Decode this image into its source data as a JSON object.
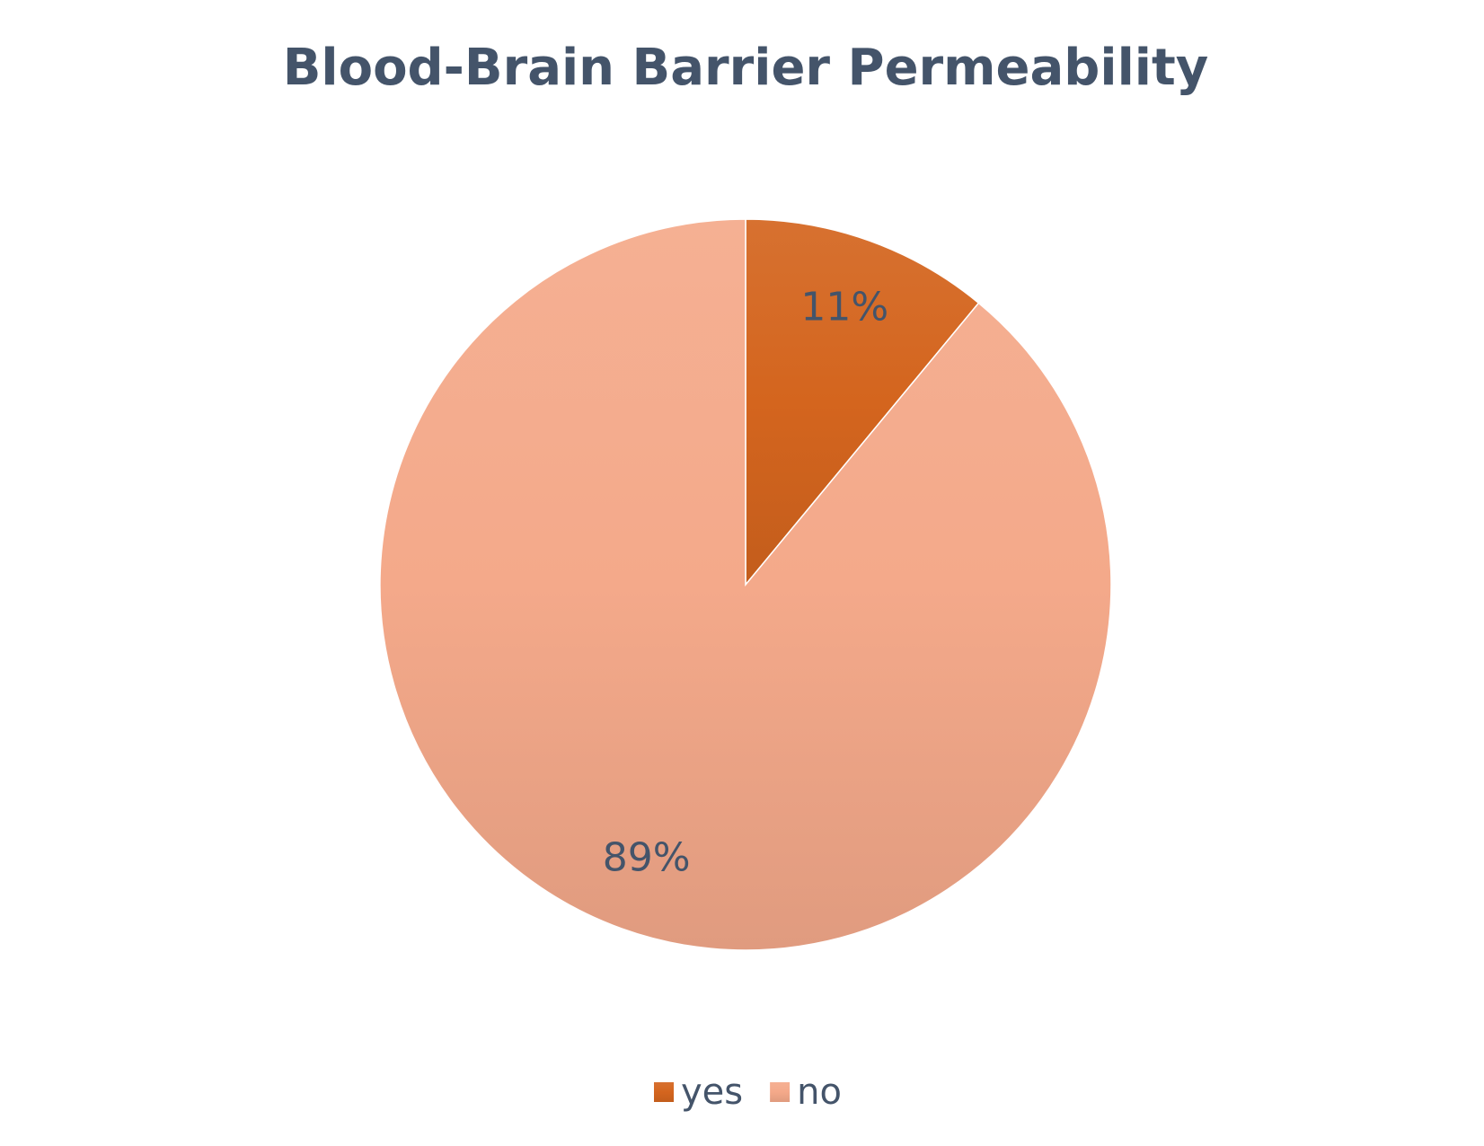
{
  "chart_data": {
    "type": "pie",
    "title": "Blood-Brain Barrier Permeability",
    "categories": [
      "yes",
      "no"
    ],
    "values": [
      11,
      89
    ],
    "value_labels": [
      "11%",
      "89%"
    ],
    "colors": [
      "#d4651e",
      "#f4a98a"
    ],
    "legend": "bottom"
  }
}
